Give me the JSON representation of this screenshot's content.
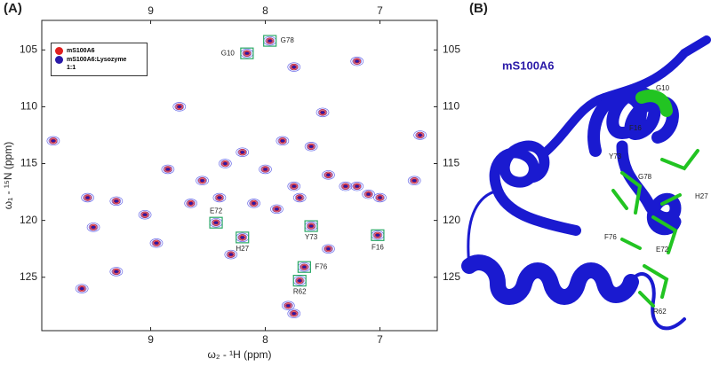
{
  "panels": [
    "(A)",
    "(B)"
  ],
  "chart_data": {
    "type": "scatter",
    "xlabel": "ω₂ - ¹H (ppm)",
    "ylabel": "ω₁ - ¹⁵N (ppm)",
    "xlim": [
      9.95,
      6.5
    ],
    "xticks": [
      9,
      8,
      7
    ],
    "ylim": [
      102.4,
      129.7
    ],
    "yticks": [
      105,
      110,
      115,
      120,
      125
    ],
    "legend": "upper left",
    "series": [
      {
        "name": "mS100A6",
        "color": "#e02020",
        "x": [
          9.85,
          9.55,
          9.3,
          9.05,
          9.5,
          9.3,
          8.85,
          8.75,
          8.65,
          8.55,
          8.35,
          8.2,
          8.0,
          7.85,
          7.75,
          7.6,
          7.45,
          7.3,
          7.1,
          6.65,
          6.7,
          7.75,
          7.2,
          7.5,
          7.0,
          8.4,
          8.1,
          7.9,
          7.7,
          7.45,
          7.2,
          7.8,
          7.75,
          8.95,
          9.6,
          8.3,
          8.16,
          7.96,
          8.43,
          8.2,
          7.6,
          7.02,
          7.66,
          7.7
        ],
        "values": [
          113.0,
          118.0,
          118.3,
          119.5,
          120.6,
          124.5,
          115.5,
          110.0,
          118.5,
          116.5,
          115.0,
          114.0,
          115.5,
          113.0,
          117.0,
          113.5,
          116.0,
          117.0,
          117.7,
          112.5,
          116.5,
          106.5,
          106.0,
          110.5,
          118.0,
          118.0,
          118.5,
          119.0,
          118.0,
          122.5,
          117.0,
          127.5,
          128.2,
          122.0,
          126.0,
          123.0,
          105.3,
          104.2,
          120.2,
          121.5,
          120.5,
          121.3,
          124.1,
          125.3
        ]
      },
      {
        "name": "mS100A6:Lysozyme 1:1",
        "color": "#2a1aa8",
        "x": [
          9.85,
          9.55,
          9.3,
          9.05,
          9.5,
          9.3,
          8.85,
          8.75,
          8.65,
          8.55,
          8.35,
          8.2,
          8.0,
          7.85,
          7.75,
          7.6,
          7.45,
          7.3,
          7.1,
          6.65,
          6.7,
          7.75,
          7.2,
          7.5,
          7.0,
          8.4,
          8.1,
          7.9,
          7.7,
          7.45,
          7.2,
          7.8,
          7.75,
          8.95,
          9.6,
          8.3,
          8.16,
          7.96,
          8.43,
          8.2,
          7.6,
          7.02,
          7.66,
          7.7
        ],
        "values": [
          113.0,
          118.0,
          118.3,
          119.5,
          120.6,
          124.5,
          115.5,
          110.0,
          118.5,
          116.5,
          115.0,
          114.0,
          115.5,
          113.0,
          117.0,
          113.5,
          116.0,
          117.0,
          117.7,
          112.5,
          116.5,
          106.5,
          106.0,
          110.5,
          118.0,
          118.0,
          118.5,
          119.0,
          118.0,
          122.5,
          117.0,
          127.5,
          128.2,
          122.0,
          126.0,
          123.0,
          105.3,
          104.2,
          120.2,
          121.5,
          120.5,
          121.3,
          124.1,
          125.3
        ]
      }
    ],
    "annotations": [
      {
        "text": "G10",
        "x": 8.16,
        "y": 105.3
      },
      {
        "text": "G78",
        "x": 7.96,
        "y": 104.2
      },
      {
        "text": "E72",
        "x": 8.43,
        "y": 120.2
      },
      {
        "text": "H27",
        "x": 8.2,
        "y": 121.5
      },
      {
        "text": "Y73",
        "x": 7.6,
        "y": 120.5
      },
      {
        "text": "F16",
        "x": 7.02,
        "y": 121.3
      },
      {
        "text": "F76",
        "x": 7.66,
        "y": 124.1
      },
      {
        "text": "R62",
        "x": 7.7,
        "y": 125.3
      }
    ]
  },
  "structure": {
    "title": "mS100A6",
    "labels": [
      "G10",
      "F16",
      "Y73",
      "H27",
      "G78",
      "F76",
      "E72",
      "R62"
    ]
  }
}
